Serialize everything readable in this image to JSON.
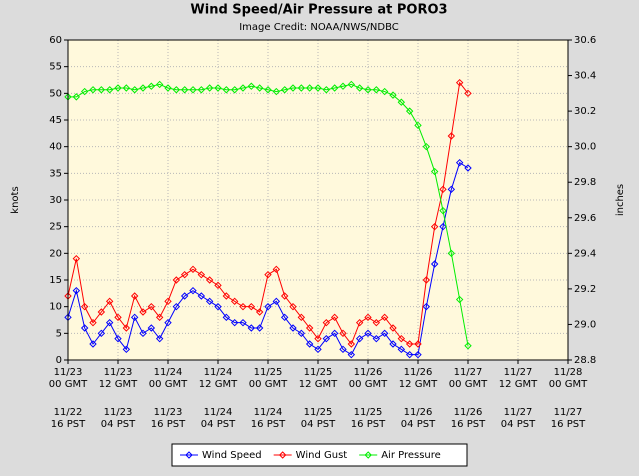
{
  "chart_data": {
    "type": "line",
    "title": "Wind Speed/Air Pressure at PORO3",
    "subtitle": "Image Credit: NOAA/NWS/NDBC",
    "ylabel": "knots",
    "y2label": "inches",
    "legend": "bottom",
    "grid": true,
    "x": [
      0,
      2,
      4,
      6,
      8,
      10,
      12,
      14,
      16,
      18,
      20,
      22,
      24,
      26,
      28,
      30,
      32,
      34,
      36,
      38,
      40,
      42,
      44,
      46,
      48,
      50,
      52,
      54,
      56,
      58,
      60,
      62,
      64,
      66,
      68,
      70,
      72,
      74,
      76,
      78,
      80,
      82,
      84,
      86,
      88,
      90,
      92,
      94,
      96
    ],
    "xlim": [
      0,
      120
    ],
    "xticks": [
      {
        "value": 0,
        "label": "11/23\n00 GMT"
      },
      {
        "value": 12,
        "label": "11/23\n12 GMT"
      },
      {
        "value": 24,
        "label": "11/24\n00 GMT"
      },
      {
        "value": 36,
        "label": "11/24\n12 GMT"
      },
      {
        "value": 48,
        "label": "11/25\n00 GMT"
      },
      {
        "value": 60,
        "label": "11/25\n12 GMT"
      },
      {
        "value": 72,
        "label": "11/26\n00 GMT"
      },
      {
        "value": 84,
        "label": "11/26\n12 GMT"
      },
      {
        "value": 96,
        "label": "11/27\n00 GMT"
      },
      {
        "value": 108,
        "label": "11/27\n12 GMT"
      },
      {
        "value": 120,
        "label": "11/28\n00 GMT"
      }
    ],
    "xticks_local": [
      {
        "value": 0,
        "label": "11/22\n16 PST"
      },
      {
        "value": 12,
        "label": "11/23\n04 PST"
      },
      {
        "value": 24,
        "label": "11/23\n16 PST"
      },
      {
        "value": 36,
        "label": "11/24\n04 PST"
      },
      {
        "value": 48,
        "label": "11/24\n16 PST"
      },
      {
        "value": 60,
        "label": "11/25\n04 PST"
      },
      {
        "value": 72,
        "label": "11/25\n16 PST"
      },
      {
        "value": 84,
        "label": "11/26\n04 PST"
      },
      {
        "value": 96,
        "label": "11/26\n16 PST"
      },
      {
        "value": 108,
        "label": "11/27\n04 PST"
      },
      {
        "value": 120,
        "label": "11/27\n16 PST"
      }
    ],
    "ylim": [
      0,
      60
    ],
    "yticks": [
      0,
      5,
      10,
      15,
      20,
      25,
      30,
      35,
      40,
      45,
      50,
      55,
      60
    ],
    "y2lim": [
      28.8,
      30.6
    ],
    "y2ticks": [
      28.8,
      {
        "value": 29.0,
        "label": "29.0"
      },
      29.2,
      29.4,
      29.6,
      29.8,
      {
        "value": 30.0,
        "label": "30.0"
      },
      30.2,
      30.4,
      30.6
    ],
    "series": [
      {
        "name": "Wind Speed",
        "color": "#0000ff",
        "values": [
          8,
          13,
          6,
          3,
          5,
          7,
          4,
          2,
          8,
          5,
          6,
          4,
          7,
          10,
          12,
          13,
          12,
          11,
          10,
          8,
          7,
          7,
          6,
          6,
          10,
          11,
          8,
          6,
          5,
          3,
          2,
          4,
          5,
          2,
          1,
          4,
          5,
          4,
          5,
          3,
          2,
          1,
          1,
          10,
          18,
          25,
          32,
          37,
          36
        ]
      },
      {
        "name": "Wind Gust",
        "color": "#ff0000",
        "values": [
          12,
          19,
          10,
          7,
          9,
          11,
          8,
          6,
          12,
          9,
          10,
          8,
          11,
          15,
          16,
          17,
          16,
          15,
          14,
          12,
          11,
          10,
          10,
          9,
          16,
          17,
          12,
          10,
          8,
          6,
          4,
          7,
          8,
          5,
          3,
          7,
          8,
          7,
          8,
          6,
          4,
          3,
          3,
          15,
          25,
          32,
          42,
          52,
          50
        ]
      },
      {
        "name": "Air Pressure",
        "color": "#00ee00",
        "axis": "y2",
        "values": [
          30.28,
          30.28,
          30.31,
          30.32,
          30.32,
          30.32,
          30.33,
          30.33,
          30.32,
          30.33,
          30.34,
          30.35,
          30.33,
          30.32,
          30.32,
          30.32,
          30.32,
          30.33,
          30.33,
          30.32,
          30.32,
          30.33,
          30.34,
          30.33,
          30.32,
          30.31,
          30.32,
          30.33,
          30.33,
          30.33,
          30.33,
          30.32,
          30.33,
          30.34,
          30.35,
          30.33,
          30.32,
          30.32,
          30.31,
          30.29,
          30.25,
          30.2,
          30.12,
          30.0,
          29.86,
          29.64,
          29.4,
          29.14,
          28.88
        ]
      }
    ]
  }
}
